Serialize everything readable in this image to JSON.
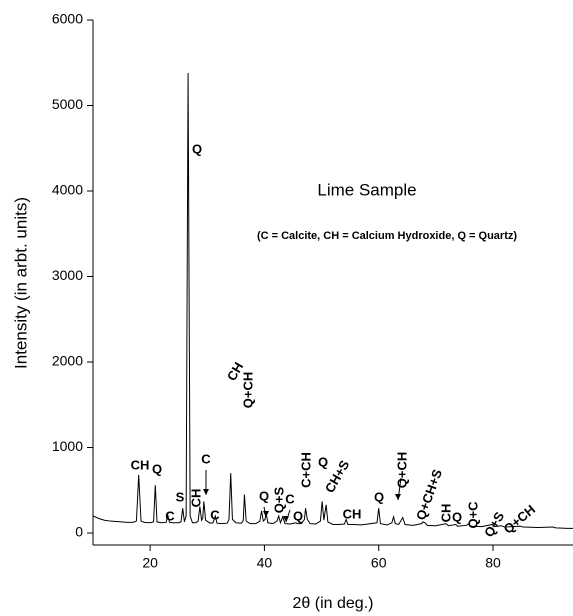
{
  "chart_data": {
    "type": "line",
    "title": "Lime Sample",
    "subtitle": "(C = Calcite, CH = Calcium Hydroxide, Q = Quartz)",
    "x_label": "2θ (in deg.)",
    "y_label": "Intensity (in arbt. units)",
    "xlim": [
      10,
      94
    ],
    "ylim": [
      -140,
      6000
    ],
    "xticks": [
      20,
      40,
      60,
      80
    ],
    "yticks": [
      0,
      1000,
      2000,
      3000,
      4000,
      5000,
      6000
    ],
    "annotations": [
      "CH",
      "Q",
      "C",
      "S",
      "CH",
      "C",
      "C",
      "CH",
      "Q+CH",
      "Q",
      "Q",
      "Q+S",
      "C",
      "Q",
      "C+CH",
      "Q",
      "CH+S",
      "CH",
      "Q",
      "Q+CH",
      "Q+CH+S",
      "CH",
      "Q",
      "Q+C",
      "Q+S",
      "Q+CH"
    ],
    "series": [
      {
        "name": "Lime Sample",
        "color": "#000000",
        "x": [
          10,
          11,
          12,
          13,
          14,
          15,
          16,
          17,
          17.6,
          18,
          18.4,
          19,
          20,
          20.6,
          20.9,
          21.2,
          22,
          22.8,
          23.1,
          23.4,
          24,
          25,
          25.4,
          25.7,
          26,
          26.3,
          26.64,
          27,
          27.4,
          28,
          28.4,
          28.7,
          29,
          29.2,
          29.4,
          29.7,
          30.5,
          31,
          31.4,
          31.7,
          32.5,
          33.5,
          33.8,
          34.1,
          34.4,
          35,
          36,
          36.3,
          36.5,
          36.8,
          37.5,
          38.5,
          39.2,
          39.5,
          39.8,
          40.1,
          40.3,
          40.6,
          41.5,
          42.2,
          42.5,
          42.8,
          43.2,
          43.6,
          44.5,
          45.5,
          45.8,
          46.5,
          47,
          47.2,
          47.5,
          48,
          49,
          49.8,
          50.1,
          50.4,
          50.8,
          51.1,
          52,
          53,
          54,
          54.3,
          54.6,
          55.5,
          57,
          59.7,
          60,
          60.3,
          61.5,
          62.3,
          62.6,
          62.9,
          63.5,
          64.2,
          64.6,
          66,
          67.5,
          67.7,
          68.1,
          68.5,
          70,
          71.8,
          72.2,
          73.5,
          73.8,
          75.4,
          75.7,
          76,
          78,
          79.9,
          80.2,
          81.5,
          82,
          84.8,
          85.2,
          88,
          90.5,
          91,
          93,
          94
        ],
        "values": [
          200,
          170,
          150,
          140,
          135,
          130,
          125,
          125,
          140,
          680,
          140,
          125,
          120,
          130,
          560,
          130,
          120,
          125,
          210,
          125,
          120,
          120,
          130,
          290,
          130,
          200,
          5380,
          200,
          120,
          120,
          140,
          310,
          150,
          170,
          370,
          150,
          115,
          120,
          200,
          115,
          110,
          115,
          160,
          700,
          160,
          120,
          115,
          150,
          450,
          140,
          110,
          110,
          140,
          260,
          140,
          160,
          230,
          120,
          110,
          140,
          200,
          120,
          190,
          110,
          105,
          120,
          110,
          110,
          160,
          290,
          160,
          110,
          105,
          140,
          370,
          150,
          330,
          130,
          100,
          100,
          105,
          160,
          100,
          100,
          95,
          120,
          290,
          110,
          95,
          120,
          190,
          110,
          100,
          180,
          100,
          90,
          110,
          130,
          120,
          90,
          85,
          110,
          85,
          100,
          80,
          90,
          110,
          80,
          75,
          100,
          75,
          85,
          70,
          80,
          70,
          65,
          70,
          60,
          55,
          55
        ]
      }
    ]
  }
}
